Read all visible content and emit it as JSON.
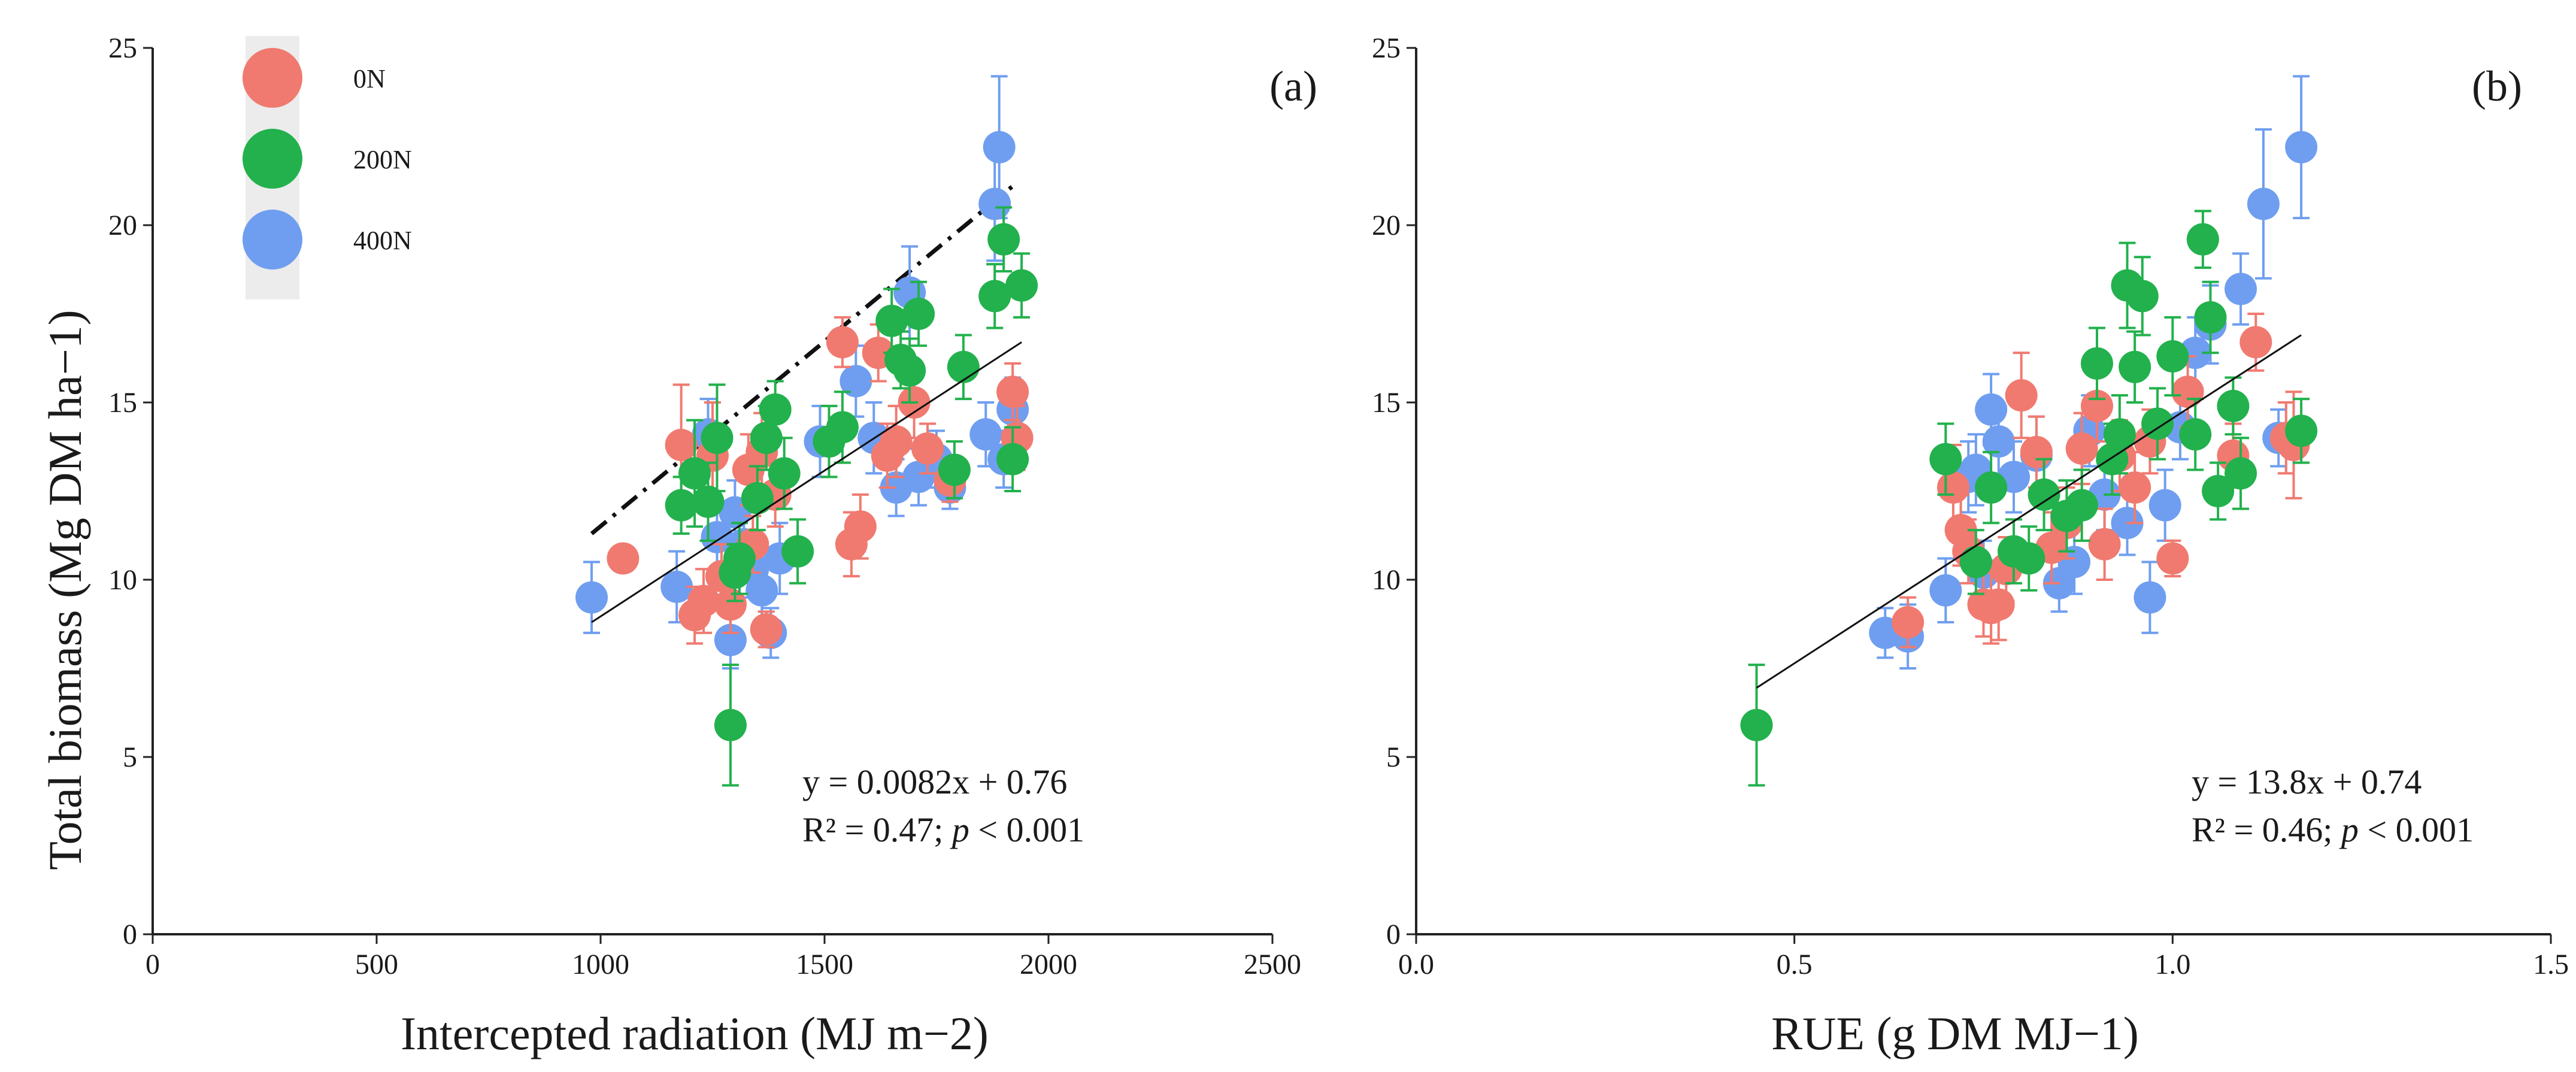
{
  "colors": {
    "0N": "#f07a70",
    "200N": "#22b14c",
    "400N": "#6f9ef0",
    "axis": "#222222",
    "legend_bg": "#ececec"
  },
  "chart_data": [
    {
      "type": "scatter",
      "panel_label": "(a)",
      "xlabel": "Intercepted radiation (MJ m−2)",
      "ylabel": "Total biomass (Mg DM ha−1)",
      "xlim": [
        0,
        2500
      ],
      "ylim": [
        0,
        25
      ],
      "xticks": [
        0,
        500,
        1000,
        1500,
        2000,
        2500
      ],
      "xtick_labels": [
        "0",
        "500",
        "1000",
        "1500",
        "2000",
        "2500"
      ],
      "yticks": [
        0,
        5,
        10,
        15,
        20,
        25
      ],
      "ytick_labels": [
        "0",
        "5",
        "10",
        "15",
        "20",
        "25"
      ],
      "legend": {
        "position": "top-left",
        "entries": [
          "0N",
          "200N",
          "400N"
        ]
      },
      "equation": "y = 0.0082x + 0.76",
      "r2_prefix": "R² = 0.47; ",
      "p_symbol": "p",
      "p_suffix": " < 0.001",
      "fit_line": {
        "style": "solid",
        "x": [
          980,
          1940
        ],
        "y": [
          8.8,
          16.7
        ]
      },
      "upper_line": {
        "style": "dash-dot",
        "x": [
          980,
          1920
        ],
        "y": [
          11.3,
          21.1
        ]
      },
      "series": [
        {
          "name": "0N",
          "points": [
            [
              1050,
              10.6,
              0
            ],
            [
              1180,
              13.8,
              1.7
            ],
            [
              1210,
              9.0,
              0.8
            ],
            [
              1230,
              9.4,
              0.9
            ],
            [
              1250,
              13.5,
              1.5
            ],
            [
              1270,
              10.1,
              0.9
            ],
            [
              1290,
              9.3,
              0.8
            ],
            [
              1330,
              13.1,
              1.0
            ],
            [
              1340,
              11.0,
              0.8
            ],
            [
              1360,
              13.6,
              1.1
            ],
            [
              1370,
              8.6,
              0.5
            ],
            [
              1390,
              12.4,
              0.9
            ],
            [
              1540,
              16.7,
              0.7
            ],
            [
              1560,
              11.0,
              0.9
            ],
            [
              1580,
              11.5,
              0.9
            ],
            [
              1620,
              16.4,
              0.8
            ],
            [
              1640,
              13.5,
              0.9
            ],
            [
              1660,
              13.9,
              1.0
            ],
            [
              1700,
              15.0,
              1.0
            ],
            [
              1730,
              13.7,
              0.7
            ],
            [
              1780,
              12.8,
              0.6
            ],
            [
              1920,
              15.3,
              0.8
            ],
            [
              1930,
              14.0,
              0.9
            ]
          ]
        },
        {
          "name": "200N",
          "points": [
            [
              1180,
              12.1,
              0.8
            ],
            [
              1210,
              13.0,
              1.5
            ],
            [
              1240,
              12.2,
              1.1
            ],
            [
              1260,
              14.0,
              1.5
            ],
            [
              1300,
              10.2,
              0.8
            ],
            [
              1310,
              10.6,
              1.0
            ],
            [
              1290,
              5.9,
              1.7
            ],
            [
              1350,
              12.3,
              0.9
            ],
            [
              1370,
              14.0,
              0.9
            ],
            [
              1390,
              14.8,
              0.8
            ],
            [
              1410,
              13.0,
              1.0
            ],
            [
              1440,
              10.8,
              0.9
            ],
            [
              1510,
              13.9,
              1.0
            ],
            [
              1540,
              14.3,
              1.0
            ],
            [
              1650,
              17.3,
              0.9
            ],
            [
              1670,
              16.2,
              0.8
            ],
            [
              1690,
              15.9,
              0.9
            ],
            [
              1710,
              17.5,
              0.9
            ],
            [
              1790,
              13.1,
              0.8
            ],
            [
              1810,
              16.0,
              0.9
            ],
            [
              1880,
              18.0,
              0.9
            ],
            [
              1900,
              19.6,
              0.9
            ],
            [
              1920,
              13.4,
              0.9
            ],
            [
              1940,
              18.3,
              0.9
            ]
          ]
        },
        {
          "name": "400N",
          "points": [
            [
              980,
              9.5,
              1.0
            ],
            [
              1170,
              9.8,
              1.0
            ],
            [
              1240,
              14.1,
              1.0
            ],
            [
              1260,
              11.2,
              0.9
            ],
            [
              1290,
              8.3,
              0.8
            ],
            [
              1300,
              11.9,
              0.9
            ],
            [
              1320,
              11.0,
              0.9
            ],
            [
              1340,
              10.3,
              0.8
            ],
            [
              1360,
              9.7,
              0.9
            ],
            [
              1380,
              8.5,
              0.7
            ],
            [
              1400,
              10.6,
              1.0
            ],
            [
              1490,
              13.9,
              1.0
            ],
            [
              1570,
              15.6,
              1.0
            ],
            [
              1610,
              14.0,
              1.0
            ],
            [
              1660,
              12.6,
              0.8
            ],
            [
              1690,
              18.1,
              1.3
            ],
            [
              1710,
              12.9,
              0.8
            ],
            [
              1750,
              13.4,
              0.8
            ],
            [
              1780,
              12.6,
              0.6
            ],
            [
              1860,
              14.1,
              0.9
            ],
            [
              1880,
              20.6,
              1.6
            ],
            [
              1890,
              22.2,
              2.0
            ],
            [
              1900,
              13.4,
              0.8
            ],
            [
              1920,
              14.8,
              0.9
            ]
          ]
        }
      ]
    },
    {
      "type": "scatter",
      "panel_label": "(b)",
      "xlabel": "RUE (g DM MJ−1)",
      "ylabel": "",
      "xlim": [
        0.0,
        1.5
      ],
      "ylim": [
        0,
        25
      ],
      "xticks": [
        0.0,
        0.5,
        1.0,
        1.5
      ],
      "xtick_labels": [
        "0.0",
        "0.5",
        "1.0",
        "1.5"
      ],
      "yticks": [
        0,
        5,
        10,
        15,
        20,
        25
      ],
      "ytick_labels": [
        "0",
        "5",
        "10",
        "15",
        "20",
        "25"
      ],
      "equation": "y = 13.8x + 0.74",
      "r2_prefix": "R² = 0.46; ",
      "p_symbol": "p",
      "p_suffix": " < 0.001",
      "fit_line": {
        "style": "solid",
        "x": [
          0.45,
          1.17
        ],
        "y": [
          6.95,
          16.9
        ]
      },
      "series": [
        {
          "name": "0N",
          "points": [
            [
              0.65,
              8.8,
              0.7
            ],
            [
              0.71,
              12.6,
              1.2
            ],
            [
              0.72,
              11.4,
              1.0
            ],
            [
              0.73,
              10.8,
              0.9
            ],
            [
              0.75,
              9.3,
              0.9
            ],
            [
              0.76,
              9.2,
              1.0
            ],
            [
              0.77,
              9.3,
              1.0
            ],
            [
              0.78,
              10.3,
              0.9
            ],
            [
              0.8,
              15.2,
              1.2
            ],
            [
              0.82,
              13.6,
              1.0
            ],
            [
              0.84,
              10.9,
              1.0
            ],
            [
              0.86,
              11.6,
              1.0
            ],
            [
              0.88,
              13.7,
              1.0
            ],
            [
              0.9,
              14.9,
              1.0
            ],
            [
              0.91,
              11.0,
              1.0
            ],
            [
              0.93,
              13.5,
              1.0
            ],
            [
              0.95,
              12.6,
              1.0
            ],
            [
              0.97,
              13.9,
              0.9
            ],
            [
              1.0,
              10.6,
              0.5
            ],
            [
              1.02,
              15.3,
              1.0
            ],
            [
              1.08,
              13.5,
              0.9
            ],
            [
              1.11,
              16.7,
              0.8
            ],
            [
              1.15,
              14.0,
              1.0
            ],
            [
              1.16,
              13.8,
              1.5
            ]
          ]
        },
        {
          "name": "200N",
          "points": [
            [
              0.45,
              5.9,
              1.7
            ],
            [
              0.7,
              13.4,
              1.0
            ],
            [
              0.74,
              10.5,
              0.9
            ],
            [
              0.76,
              12.6,
              1.0
            ],
            [
              0.79,
              10.8,
              0.9
            ],
            [
              0.81,
              10.6,
              0.9
            ],
            [
              0.83,
              12.4,
              1.0
            ],
            [
              0.86,
              11.8,
              1.0
            ],
            [
              0.88,
              12.1,
              1.0
            ],
            [
              0.9,
              16.1,
              1.0
            ],
            [
              0.92,
              13.4,
              1.0
            ],
            [
              0.93,
              14.1,
              1.1
            ],
            [
              0.94,
              18.3,
              1.2
            ],
            [
              0.96,
              18.0,
              1.1
            ],
            [
              0.95,
              16.0,
              1.0
            ],
            [
              0.98,
              14.4,
              1.0
            ],
            [
              1.0,
              16.3,
              1.1
            ],
            [
              1.03,
              14.1,
              1.0
            ],
            [
              1.04,
              19.6,
              0.8
            ],
            [
              1.05,
              17.4,
              1.0
            ],
            [
              1.06,
              12.5,
              0.8
            ],
            [
              1.08,
              14.9,
              0.8
            ],
            [
              1.09,
              13.0,
              1.0
            ],
            [
              1.17,
              14.2,
              0.9
            ]
          ]
        },
        {
          "name": "400N",
          "points": [
            [
              0.62,
              8.5,
              0.7
            ],
            [
              0.65,
              8.4,
              0.9
            ],
            [
              0.7,
              9.7,
              0.9
            ],
            [
              0.73,
              12.9,
              1.0
            ],
            [
              0.74,
              13.1,
              1.0
            ],
            [
              0.75,
              10.2,
              0.9
            ],
            [
              0.76,
              14.8,
              1.0
            ],
            [
              0.77,
              13.9,
              1.0
            ],
            [
              0.79,
              12.9,
              1.0
            ],
            [
              0.82,
              13.5,
              1.1
            ],
            [
              0.85,
              9.9,
              0.8
            ],
            [
              0.87,
              10.5,
              0.9
            ],
            [
              0.89,
              14.2,
              1.0
            ],
            [
              0.91,
              12.4,
              1.0
            ],
            [
              0.94,
              11.6,
              0.9
            ],
            [
              0.97,
              9.5,
              1.0
            ],
            [
              0.99,
              12.1,
              1.0
            ],
            [
              1.01,
              14.3,
              0.9
            ],
            [
              1.03,
              16.4,
              1.0
            ],
            [
              1.05,
              17.2,
              1.1
            ],
            [
              1.09,
              18.2,
              1.0
            ],
            [
              1.12,
              20.6,
              2.1
            ],
            [
              1.14,
              14.0,
              0.8
            ],
            [
              1.17,
              22.2,
              2.0
            ]
          ]
        }
      ]
    }
  ]
}
